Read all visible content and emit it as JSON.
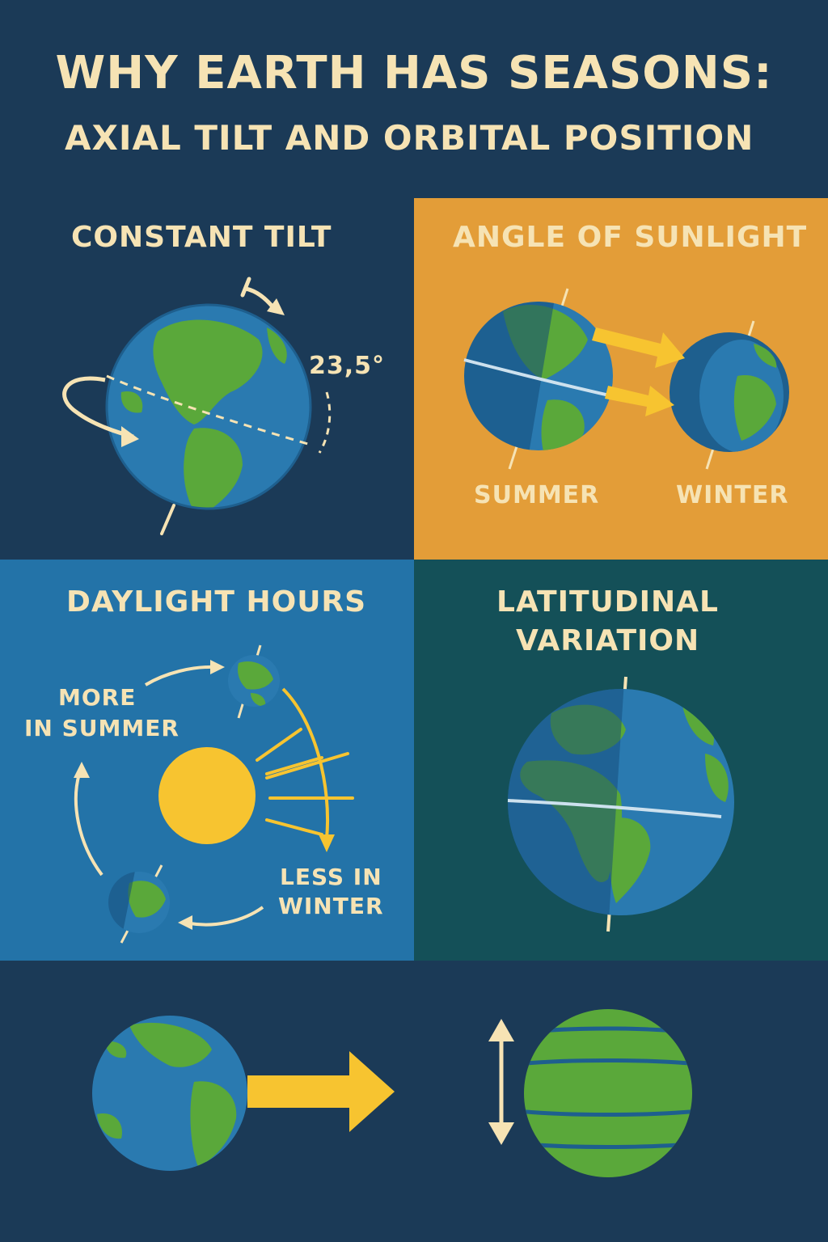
{
  "header": {
    "title": "WHY EARTH HAS SEASONS:",
    "subtitle": "AXIAL TILT AND ORBITAL POSITION"
  },
  "panels": {
    "tilt": {
      "title": "CONSTANT TILT",
      "angle_label": "23,5°"
    },
    "angle": {
      "title": "ANGLE OF SUNLIGHT",
      "summer_label": "SUMMER",
      "winter_label": "WINTER"
    },
    "daylight": {
      "title": "DAYLIGHT HOURS",
      "more_label_1": "MORE",
      "more_label_2": "IN SUMMER",
      "less_label_1": "LESS IN",
      "less_label_2": "WINTER"
    },
    "latitude": {
      "title_1": "LATITUDINAL",
      "title_2": "VARIATION"
    }
  },
  "colors": {
    "navy": "#1b3a57",
    "cream": "#f6e3b4",
    "orange": "#e39d38",
    "ocean": "#2a7ab0",
    "land": "#5aa83a",
    "sun": "#f7c430",
    "teal": "#145058",
    "blue_panel": "#2373a8"
  },
  "icons": [
    "globe-icon",
    "rotation-arrow-icon",
    "axis-line-icon",
    "sun-icon",
    "sunlight-arrow-icon",
    "double-arrow-icon",
    "banded-globe-icon"
  ]
}
